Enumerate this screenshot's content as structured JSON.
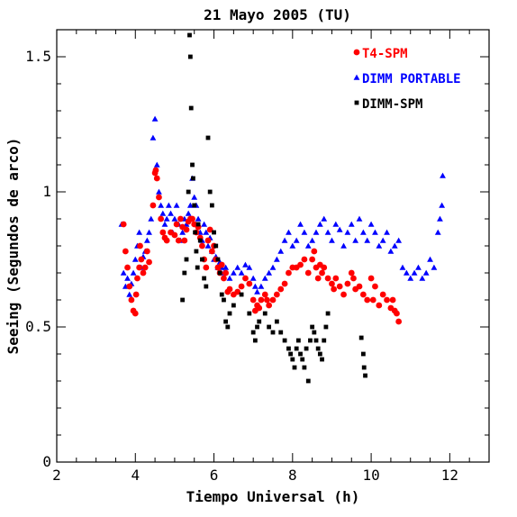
{
  "chart_data": {
    "type": "scatter",
    "title": "21 Mayo 2005 (TU)",
    "xlabel": "Tiempo Universal (h)",
    "ylabel": "Seeing (Segundos de arco)",
    "xlim": [
      2,
      13
    ],
    "ylim": [
      0,
      1.6
    ],
    "x_ticks": [
      2,
      4,
      6,
      8,
      10,
      12
    ],
    "x_tick_labels": [
      "2",
      "4",
      "6",
      "8",
      "10",
      "12"
    ],
    "y_ticks": [
      0,
      0.5,
      1,
      1.5
    ],
    "y_tick_labels": [
      "0",
      "0.5",
      "1",
      "1.5"
    ],
    "grid": false,
    "legend_position": "top-right",
    "series": [
      {
        "name": "T4-SPM",
        "color": "#ff0000",
        "marker": "circle",
        "points": [
          [
            3.7,
            0.88
          ],
          [
            3.75,
            0.78
          ],
          [
            3.8,
            0.72
          ],
          [
            3.85,
            0.65
          ],
          [
            3.9,
            0.6
          ],
          [
            3.95,
            0.56
          ],
          [
            4.0,
            0.55
          ],
          [
            4.02,
            0.62
          ],
          [
            4.05,
            0.68
          ],
          [
            4.1,
            0.72
          ],
          [
            4.12,
            0.8
          ],
          [
            4.15,
            0.75
          ],
          [
            4.2,
            0.7
          ],
          [
            4.25,
            0.72
          ],
          [
            4.3,
            0.78
          ],
          [
            4.35,
            0.74
          ],
          [
            4.45,
            0.95
          ],
          [
            4.5,
            1.07
          ],
          [
            4.52,
            1.08
          ],
          [
            4.55,
            1.05
          ],
          [
            4.6,
            0.98
          ],
          [
            4.65,
            0.9
          ],
          [
            4.7,
            0.85
          ],
          [
            4.75,
            0.83
          ],
          [
            4.8,
            0.82
          ],
          [
            4.9,
            0.85
          ],
          [
            5.0,
            0.84
          ],
          [
            5.05,
            0.88
          ],
          [
            5.1,
            0.82
          ],
          [
            5.15,
            0.9
          ],
          [
            5.2,
            0.87
          ],
          [
            5.25,
            0.82
          ],
          [
            5.3,
            0.86
          ],
          [
            5.35,
            0.89
          ],
          [
            5.4,
            0.9
          ],
          [
            5.45,
            0.9
          ],
          [
            5.5,
            0.88
          ],
          [
            5.55,
            0.85
          ],
          [
            5.6,
            0.87
          ],
          [
            5.65,
            0.83
          ],
          [
            5.7,
            0.8
          ],
          [
            5.75,
            0.75
          ],
          [
            5.8,
            0.72
          ],
          [
            5.85,
            0.82
          ],
          [
            5.9,
            0.86
          ],
          [
            5.95,
            0.78
          ],
          [
            6.0,
            0.8
          ],
          [
            6.05,
            0.75
          ],
          [
            6.1,
            0.72
          ],
          [
            6.15,
            0.7
          ],
          [
            6.2,
            0.73
          ],
          [
            6.25,
            0.68
          ],
          [
            6.3,
            0.7
          ],
          [
            6.35,
            0.63
          ],
          [
            6.4,
            0.64
          ],
          [
            6.5,
            0.62
          ],
          [
            6.6,
            0.63
          ],
          [
            6.7,
            0.65
          ],
          [
            6.8,
            0.68
          ],
          [
            6.9,
            0.66
          ],
          [
            7.0,
            0.6
          ],
          [
            7.05,
            0.56
          ],
          [
            7.1,
            0.58
          ],
          [
            7.15,
            0.57
          ],
          [
            7.2,
            0.6
          ],
          [
            7.3,
            0.62
          ],
          [
            7.35,
            0.6
          ],
          [
            7.4,
            0.58
          ],
          [
            7.5,
            0.6
          ],
          [
            7.6,
            0.62
          ],
          [
            7.7,
            0.64
          ],
          [
            7.8,
            0.66
          ],
          [
            7.9,
            0.7
          ],
          [
            8.0,
            0.72
          ],
          [
            8.1,
            0.72
          ],
          [
            8.2,
            0.73
          ],
          [
            8.3,
            0.75
          ],
          [
            8.4,
            0.7
          ],
          [
            8.5,
            0.75
          ],
          [
            8.55,
            0.78
          ],
          [
            8.6,
            0.72
          ],
          [
            8.65,
            0.68
          ],
          [
            8.7,
            0.73
          ],
          [
            8.75,
            0.7
          ],
          [
            8.8,
            0.72
          ],
          [
            8.9,
            0.68
          ],
          [
            9.0,
            0.66
          ],
          [
            9.05,
            0.64
          ],
          [
            9.1,
            0.68
          ],
          [
            9.2,
            0.65
          ],
          [
            9.3,
            0.62
          ],
          [
            9.4,
            0.66
          ],
          [
            9.5,
            0.7
          ],
          [
            9.55,
            0.68
          ],
          [
            9.6,
            0.64
          ],
          [
            9.7,
            0.65
          ],
          [
            9.8,
            0.62
          ],
          [
            9.9,
            0.6
          ],
          [
            10.0,
            0.68
          ],
          [
            10.05,
            0.6
          ],
          [
            10.1,
            0.65
          ],
          [
            10.2,
            0.58
          ],
          [
            10.3,
            0.62
          ],
          [
            10.4,
            0.6
          ],
          [
            10.5,
            0.57
          ],
          [
            10.55,
            0.6
          ],
          [
            10.6,
            0.56
          ],
          [
            10.65,
            0.55
          ],
          [
            10.7,
            0.52
          ]
        ]
      },
      {
        "name": "DIMM PORTABLE",
        "color": "#0000ff",
        "marker": "triangle",
        "points": [
          [
            3.65,
            0.88
          ],
          [
            3.7,
            0.7
          ],
          [
            3.75,
            0.65
          ],
          [
            3.8,
            0.68
          ],
          [
            3.85,
            0.62
          ],
          [
            3.9,
            0.66
          ],
          [
            3.95,
            0.7
          ],
          [
            4.0,
            0.75
          ],
          [
            4.05,
            0.8
          ],
          [
            4.1,
            0.85
          ],
          [
            4.15,
            0.72
          ],
          [
            4.2,
            0.76
          ],
          [
            4.25,
            0.78
          ],
          [
            4.3,
            0.82
          ],
          [
            4.35,
            0.85
          ],
          [
            4.4,
            0.9
          ],
          [
            4.45,
            1.2
          ],
          [
            4.5,
            1.27
          ],
          [
            4.55,
            1.1
          ],
          [
            4.6,
            1.0
          ],
          [
            4.65,
            0.95
          ],
          [
            4.7,
            0.92
          ],
          [
            4.75,
            0.88
          ],
          [
            4.8,
            0.9
          ],
          [
            4.85,
            0.95
          ],
          [
            4.9,
            0.92
          ],
          [
            4.95,
            0.85
          ],
          [
            5.0,
            0.9
          ],
          [
            5.05,
            0.95
          ],
          [
            5.1,
            0.88
          ],
          [
            5.15,
            0.82
          ],
          [
            5.2,
            0.85
          ],
          [
            5.25,
            0.9
          ],
          [
            5.3,
            0.88
          ],
          [
            5.35,
            0.92
          ],
          [
            5.4,
            0.95
          ],
          [
            5.45,
            1.05
          ],
          [
            5.5,
            0.98
          ],
          [
            5.55,
            0.95
          ],
          [
            5.6,
            0.9
          ],
          [
            5.65,
            0.85
          ],
          [
            5.7,
            0.82
          ],
          [
            5.75,
            0.88
          ],
          [
            5.8,
            0.85
          ],
          [
            5.85,
            0.8
          ],
          [
            5.9,
            0.83
          ],
          [
            5.95,
            0.78
          ],
          [
            6.0,
            0.75
          ],
          [
            6.05,
            0.76
          ],
          [
            6.1,
            0.72
          ],
          [
            6.15,
            0.74
          ],
          [
            6.2,
            0.72
          ],
          [
            6.25,
            0.7
          ],
          [
            6.3,
            0.72
          ],
          [
            6.4,
            0.68
          ],
          [
            6.5,
            0.7
          ],
          [
            6.6,
            0.72
          ],
          [
            6.7,
            0.7
          ],
          [
            6.8,
            0.73
          ],
          [
            6.9,
            0.72
          ],
          [
            7.0,
            0.68
          ],
          [
            7.05,
            0.65
          ],
          [
            7.1,
            0.63
          ],
          [
            7.2,
            0.65
          ],
          [
            7.3,
            0.68
          ],
          [
            7.4,
            0.7
          ],
          [
            7.5,
            0.72
          ],
          [
            7.6,
            0.75
          ],
          [
            7.7,
            0.78
          ],
          [
            7.8,
            0.82
          ],
          [
            7.9,
            0.85
          ],
          [
            8.0,
            0.8
          ],
          [
            8.1,
            0.82
          ],
          [
            8.2,
            0.88
          ],
          [
            8.3,
            0.85
          ],
          [
            8.4,
            0.8
          ],
          [
            8.5,
            0.82
          ],
          [
            8.6,
            0.85
          ],
          [
            8.7,
            0.88
          ],
          [
            8.8,
            0.9
          ],
          [
            8.9,
            0.85
          ],
          [
            9.0,
            0.82
          ],
          [
            9.1,
            0.88
          ],
          [
            9.2,
            0.86
          ],
          [
            9.3,
            0.8
          ],
          [
            9.4,
            0.85
          ],
          [
            9.5,
            0.88
          ],
          [
            9.6,
            0.82
          ],
          [
            9.7,
            0.9
          ],
          [
            9.8,
            0.85
          ],
          [
            9.9,
            0.82
          ],
          [
            10.0,
            0.88
          ],
          [
            10.1,
            0.85
          ],
          [
            10.2,
            0.8
          ],
          [
            10.3,
            0.82
          ],
          [
            10.4,
            0.85
          ],
          [
            10.5,
            0.78
          ],
          [
            10.6,
            0.8
          ],
          [
            10.7,
            0.82
          ],
          [
            10.8,
            0.72
          ],
          [
            10.9,
            0.7
          ],
          [
            11.0,
            0.68
          ],
          [
            11.1,
            0.7
          ],
          [
            11.2,
            0.72
          ],
          [
            11.3,
            0.68
          ],
          [
            11.4,
            0.7
          ],
          [
            11.5,
            0.75
          ],
          [
            11.6,
            0.72
          ],
          [
            11.7,
            0.85
          ],
          [
            11.75,
            0.9
          ],
          [
            11.8,
            0.95
          ],
          [
            11.82,
            1.06
          ]
        ]
      },
      {
        "name": "DIMM-SPM",
        "color": "#000000",
        "marker": "square",
        "points": [
          [
            5.2,
            0.6
          ],
          [
            5.25,
            0.7
          ],
          [
            5.3,
            0.75
          ],
          [
            5.35,
            1.0
          ],
          [
            5.38,
            1.58
          ],
          [
            5.4,
            1.5
          ],
          [
            5.42,
            1.31
          ],
          [
            5.45,
            1.1
          ],
          [
            5.47,
            1.05
          ],
          [
            5.5,
            0.95
          ],
          [
            5.52,
            0.85
          ],
          [
            5.55,
            0.78
          ],
          [
            5.58,
            0.72
          ],
          [
            5.6,
            0.88
          ],
          [
            5.65,
            0.82
          ],
          [
            5.7,
            0.75
          ],
          [
            5.75,
            0.68
          ],
          [
            5.8,
            0.65
          ],
          [
            5.85,
            1.2
          ],
          [
            5.9,
            1.0
          ],
          [
            5.95,
            0.95
          ],
          [
            6.0,
            0.85
          ],
          [
            6.05,
            0.8
          ],
          [
            6.1,
            0.75
          ],
          [
            6.15,
            0.7
          ],
          [
            6.2,
            0.62
          ],
          [
            6.25,
            0.6
          ],
          [
            6.3,
            0.52
          ],
          [
            6.35,
            0.5
          ],
          [
            6.4,
            0.55
          ],
          [
            6.5,
            0.58
          ],
          [
            6.7,
            0.62
          ],
          [
            6.9,
            0.55
          ],
          [
            7.0,
            0.48
          ],
          [
            7.05,
            0.45
          ],
          [
            7.1,
            0.5
          ],
          [
            7.15,
            0.52
          ],
          [
            7.3,
            0.55
          ],
          [
            7.4,
            0.5
          ],
          [
            7.5,
            0.48
          ],
          [
            7.6,
            0.52
          ],
          [
            7.7,
            0.48
          ],
          [
            7.8,
            0.45
          ],
          [
            7.9,
            0.42
          ],
          [
            7.95,
            0.4
          ],
          [
            8.0,
            0.38
          ],
          [
            8.05,
            0.35
          ],
          [
            8.1,
            0.42
          ],
          [
            8.15,
            0.45
          ],
          [
            8.2,
            0.4
          ],
          [
            8.25,
            0.38
          ],
          [
            8.3,
            0.35
          ],
          [
            8.35,
            0.42
          ],
          [
            8.4,
            0.3
          ],
          [
            8.45,
            0.45
          ],
          [
            8.5,
            0.5
          ],
          [
            8.55,
            0.48
          ],
          [
            8.6,
            0.45
          ],
          [
            8.65,
            0.42
          ],
          [
            8.7,
            0.4
          ],
          [
            8.75,
            0.38
          ],
          [
            8.8,
            0.45
          ],
          [
            8.85,
            0.5
          ],
          [
            8.9,
            0.55
          ],
          [
            9.75,
            0.46
          ],
          [
            9.8,
            0.4
          ],
          [
            9.82,
            0.35
          ],
          [
            9.85,
            0.32
          ]
        ]
      }
    ]
  }
}
